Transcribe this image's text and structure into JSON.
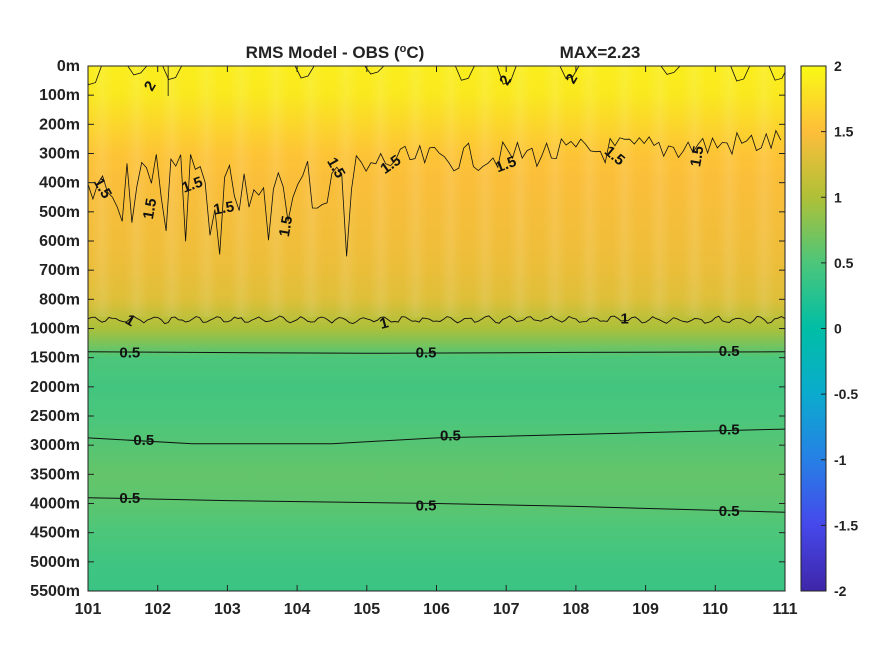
{
  "chart_data": {
    "type": "heatmap",
    "title_prefix": "RMS Model - OBS (",
    "title_unit_sup": "o",
    "title_unit": "C)",
    "max_label": "MAX=2.23",
    "x_ticks": [
      "101",
      "102",
      "103",
      "104",
      "105",
      "106",
      "107",
      "108",
      "109",
      "110",
      "111"
    ],
    "xlim": [
      101,
      111
    ],
    "y_ticks": [
      "0m",
      "100m",
      "200m",
      "300m",
      "400m",
      "500m",
      "600m",
      "700m",
      "800m",
      "1000m",
      "1500m",
      "2000m",
      "2500m",
      "3000m",
      "3500m",
      "4000m",
      "4500m",
      "5000m",
      "5500m"
    ],
    "y_scale": "nonlinear depth (index-spaced levels)",
    "colorbar": {
      "min": -2,
      "max": 2,
      "ticks": [
        "2",
        "1.5",
        "1",
        "0.5",
        "0",
        "-0.5",
        "-1",
        "-1.5",
        "-2"
      ],
      "colormap": "parula"
    },
    "depth_profile": [
      {
        "depth": "0m",
        "value": 1.9
      },
      {
        "depth": "100m",
        "value": 1.85
      },
      {
        "depth": "200m",
        "value": 1.7
      },
      {
        "depth": "300m",
        "value": 1.55
      },
      {
        "depth": "400m",
        "value": 1.48
      },
      {
        "depth": "500m",
        "value": 1.45
      },
      {
        "depth": "600m",
        "value": 1.42
      },
      {
        "depth": "700m",
        "value": 1.38
      },
      {
        "depth": "800m",
        "value": 1.3
      },
      {
        "depth": "1000m",
        "value": 0.98
      },
      {
        "depth": "1500m",
        "value": 0.5
      },
      {
        "depth": "2000m",
        "value": 0.44
      },
      {
        "depth": "2500m",
        "value": 0.48
      },
      {
        "depth": "3000m",
        "value": 0.55
      },
      {
        "depth": "3500m",
        "value": 0.62
      },
      {
        "depth": "4000m",
        "value": 0.58
      },
      {
        "depth": "4500m",
        "value": 0.5
      },
      {
        "depth": "5000m",
        "value": 0.42
      },
      {
        "depth": "5500m",
        "value": 0.38
      }
    ],
    "contour_labels": [
      {
        "text": "2",
        "x": 101.9,
        "y": 0.7,
        "rot": -60
      },
      {
        "text": "2",
        "x": 107.0,
        "y": 0.5,
        "rot": -60
      },
      {
        "text": "2",
        "x": 107.95,
        "y": 0.45,
        "rot": -60
      },
      {
        "text": "1.5",
        "x": 101.2,
        "y": 4.2,
        "rot": 60
      },
      {
        "text": "1.5",
        "x": 101.9,
        "y": 4.9,
        "rot": -80
      },
      {
        "text": "1.5",
        "x": 102.5,
        "y": 4.1,
        "rot": -20
      },
      {
        "text": "1.5",
        "x": 102.95,
        "y": 4.9,
        "rot": -10
      },
      {
        "text": "1.5",
        "x": 103.85,
        "y": 5.5,
        "rot": -80
      },
      {
        "text": "1.5",
        "x": 104.55,
        "y": 3.5,
        "rot": 60
      },
      {
        "text": "1.5",
        "x": 105.35,
        "y": 3.4,
        "rot": -35
      },
      {
        "text": "1.5",
        "x": 107.0,
        "y": 3.4,
        "rot": -20
      },
      {
        "text": "1.5",
        "x": 108.55,
        "y": 3.1,
        "rot": 40
      },
      {
        "text": "1.5",
        "x": 109.75,
        "y": 3.1,
        "rot": -80
      },
      {
        "text": "1",
        "x": 101.6,
        "y": 8.75,
        "rot": 30
      },
      {
        "text": "1",
        "x": 105.25,
        "y": 8.85,
        "rot": -15
      },
      {
        "text": "1",
        "x": 108.7,
        "y": 8.7,
        "rot": 0
      },
      {
        "text": "0.5",
        "x": 101.6,
        "y": 9.85,
        "rot": 0
      },
      {
        "text": "0.5",
        "x": 105.85,
        "y": 9.85,
        "rot": 0
      },
      {
        "text": "0.5",
        "x": 110.2,
        "y": 9.8,
        "rot": 0
      },
      {
        "text": "0.5",
        "x": 101.8,
        "y": 12.85,
        "rot": 0
      },
      {
        "text": "0.5",
        "x": 106.2,
        "y": 12.7,
        "rot": 0
      },
      {
        "text": "0.5",
        "x": 110.2,
        "y": 12.5,
        "rot": 0
      },
      {
        "text": "0.5",
        "x": 101.6,
        "y": 14.85,
        "rot": 0
      },
      {
        "text": "0.5",
        "x": 105.85,
        "y": 15.1,
        "rot": 0
      },
      {
        "text": "0.5",
        "x": 110.2,
        "y": 15.3,
        "rot": 0
      }
    ],
    "contour_lines": [
      {
        "level": "0.5",
        "points": [
          [
            101,
            9.8
          ],
          [
            105,
            9.85
          ],
          [
            108,
            9.82
          ],
          [
            111,
            9.8
          ]
        ]
      },
      {
        "level": "0.5",
        "points": [
          [
            101,
            12.75
          ],
          [
            102.5,
            12.95
          ],
          [
            104.5,
            12.95
          ],
          [
            106,
            12.75
          ],
          [
            111,
            12.45
          ]
        ]
      },
      {
        "level": "0.5",
        "points": [
          [
            101,
            14.8
          ],
          [
            103,
            14.9
          ],
          [
            106,
            15.0
          ],
          [
            108,
            15.1
          ],
          [
            111,
            15.3
          ]
        ]
      }
    ],
    "grid": false
  }
}
